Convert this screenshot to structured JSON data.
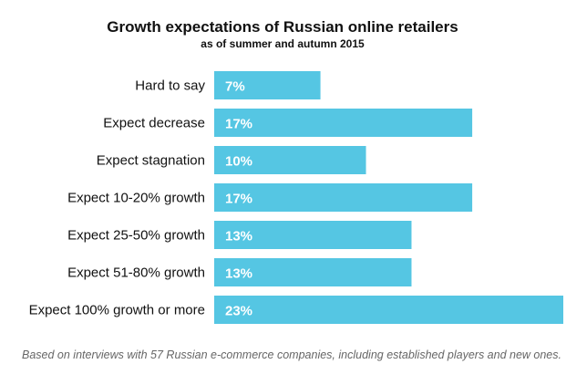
{
  "chart_data": {
    "type": "bar",
    "orientation": "horizontal",
    "title": "Growth expectations of Russian online retailers",
    "subtitle": "as of summer and autumn 2015",
    "categories": [
      "Hard to say",
      "Expect decrease",
      "Expect stagnation",
      "Expect 10-20% growth",
      "Expect 25-50% growth",
      "Expect 51-80% growth",
      "Expect 100% growth or more"
    ],
    "values": [
      7,
      17,
      10,
      17,
      13,
      13,
      23
    ],
    "value_labels": [
      "7%",
      "17%",
      "10%",
      "17%",
      "13%",
      "13%",
      "23%"
    ],
    "unit": "%",
    "xlim": [
      0,
      23
    ],
    "grid": false,
    "bar_color": "#55c6e3",
    "footnote": "Based on interviews with 57 Russian e-commerce companies, including established players and new ones."
  }
}
